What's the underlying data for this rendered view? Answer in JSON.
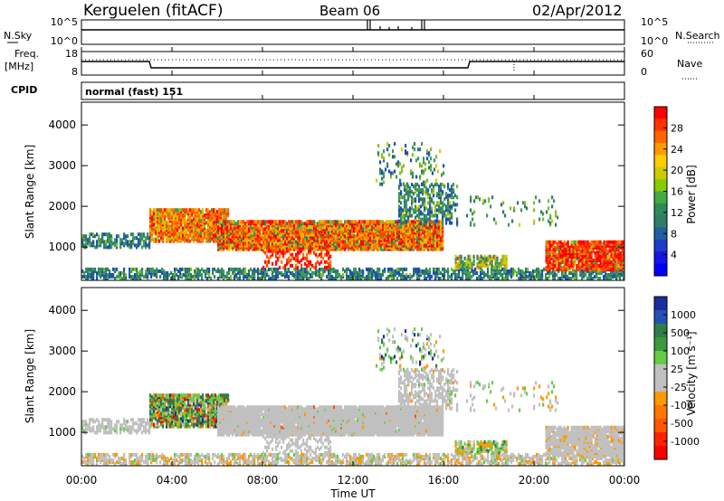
{
  "header": {
    "station": "Kerguelen (fitACF)",
    "beam": "Beam 06",
    "date": "02/Apr/2012"
  },
  "top_panels": {
    "nsky_label": "N.Sky",
    "nsearch_label": "N.Search",
    "nsky_ticks": [
      "10^5",
      "10^0"
    ],
    "nsearch_ticks": [
      "10^5",
      "10^0"
    ],
    "freq_label_1": "Freq.",
    "freq_label_2": "[MHz]",
    "freq_ticks": [
      "18",
      "8"
    ],
    "nave_label": "Nave",
    "nave_ticks": [
      "60",
      "0"
    ],
    "cpid_label": "CPID",
    "cpid_value": "normal (fast) 151"
  },
  "chart_data": [
    {
      "type": "heatmap",
      "ylabel": "Slant Range [km]",
      "ylim": [
        180,
        4560
      ],
      "yticks": [
        "1000",
        "2000",
        "3000",
        "4000"
      ],
      "colorbar_label": "Power [dB]",
      "colorbar_ticks": [
        "28",
        "24",
        "20",
        "16",
        "12",
        "8",
        "4"
      ],
      "colorbar_colors": [
        "#ff0000",
        "#ff3300",
        "#ff6600",
        "#ff9900",
        "#ffcc00",
        "#cccc00",
        "#88cc00",
        "#44aa44",
        "#2e8b57",
        "#2e7c6a",
        "#1e5fa0",
        "#1e3cc8",
        "#1414e6",
        "#0000ff"
      ]
    },
    {
      "type": "heatmap",
      "ylabel": "Slant Range [km]",
      "ylim": [
        180,
        4560
      ],
      "yticks": [
        "1000",
        "2000",
        "3000",
        "4000"
      ],
      "xlabel": "Time UT",
      "xticks": [
        "00:00",
        "04:00",
        "08:00",
        "12:00",
        "16:00",
        "20:00",
        "00:00"
      ],
      "colorbar_label": "Velocity [m s⁻¹]",
      "colorbar_ticks": [
        "1000",
        "500",
        "100",
        "25",
        "-25",
        "-100",
        "-500",
        "-1000"
      ],
      "colorbar_colors": [
        "#1a2ea0",
        "#2650b4",
        "#2e7d4a",
        "#3c9a3c",
        "#66cc44",
        "#c0c0c0",
        "#c0c0c0",
        "#ff9900",
        "#ff7700",
        "#ff5500",
        "#ff2200",
        "#ff0000"
      ]
    }
  ]
}
